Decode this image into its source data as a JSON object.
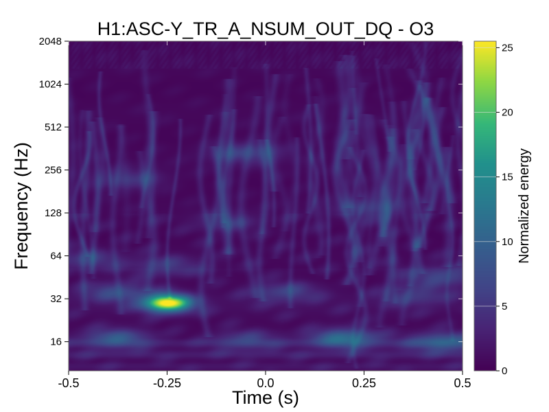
{
  "chart_data": {
    "type": "heatmap",
    "title": "H1:ASC-Y_TR_A_NSUM_OUT_DQ - O3",
    "xlabel": "Time (s)",
    "ylabel": "Frequency (Hz)",
    "xlim": [
      -0.5,
      0.5
    ],
    "ylim": [
      10,
      2048
    ],
    "yscale": "log2",
    "x_ticks": [
      -0.5,
      -0.25,
      0.0,
      0.25,
      0.5
    ],
    "x_tick_labels": [
      "-0.5",
      "-0.25",
      "0.0",
      "0.25",
      "0.5"
    ],
    "y_ticks": [
      16,
      32,
      64,
      128,
      256,
      512,
      1024,
      2048
    ],
    "y_tick_labels": [
      "16",
      "32",
      "64",
      "128",
      "256",
      "512",
      "1024",
      "2048"
    ],
    "colorbar": {
      "label": "Normalized energy",
      "range": [
        0,
        25.5
      ],
      "ticks": [
        0,
        5,
        10,
        15,
        20,
        25
      ],
      "tick_labels": [
        "0",
        "5",
        "10",
        "15",
        "20",
        "25"
      ],
      "colormap": "viridis"
    },
    "features": [
      {
        "x": -0.25,
        "freq": 30,
        "energy": 25.5
      },
      {
        "x": 0.2,
        "freq": 17,
        "energy": 12
      },
      {
        "x": -0.38,
        "freq": 17,
        "energy": 9
      },
      {
        "x": 0.45,
        "freq": 16,
        "energy": 10
      },
      {
        "x": -0.05,
        "freq": 16.5,
        "energy": 6
      },
      {
        "x": -0.38,
        "freq": 36,
        "energy": 7
      },
      {
        "x": 0.05,
        "freq": 36,
        "energy": 6
      },
      {
        "x": 0.38,
        "freq": 34,
        "energy": 5
      },
      {
        "x": -0.25,
        "freq": 54,
        "energy": 5
      },
      {
        "x": 0.45,
        "freq": 46,
        "energy": 7
      },
      {
        "x": -0.45,
        "freq": 60,
        "energy": 5
      },
      {
        "x": -0.05,
        "freq": 340,
        "energy": 6
      },
      {
        "x": -0.35,
        "freq": 220,
        "energy": 5
      },
      {
        "x": 0.25,
        "freq": 140,
        "energy": 4
      },
      {
        "x": -0.1,
        "freq": 110,
        "energy": 4
      }
    ]
  },
  "colors": {
    "viridis_low": "#440154",
    "viridis_mid": "#21918c",
    "viridis_high": "#fde725"
  }
}
